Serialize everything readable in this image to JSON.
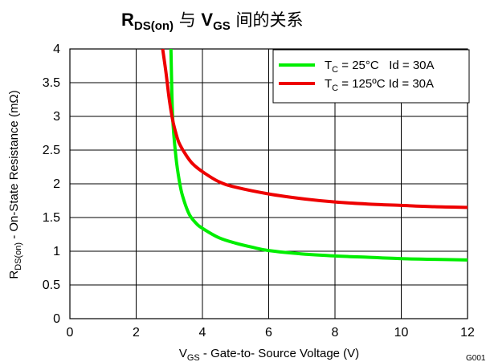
{
  "chart_data": {
    "type": "line",
    "title": {
      "p1": "R",
      "p1_sub": "DS(on)",
      "p2": " 与 ",
      "p3": "V",
      "p3_sub": "GS",
      "p4": " 间的关系"
    },
    "xlabel": {
      "main": "V",
      "sub": "GS",
      "rest": " - Gate-to- Source Voltage (V)"
    },
    "ylabel": {
      "main": "R",
      "sub": "DS(on)",
      "rest": " - On-State Resistance (mΩ)"
    },
    "xlim": [
      0,
      12
    ],
    "ylim": [
      0,
      4
    ],
    "xticks": [
      0,
      2,
      4,
      6,
      8,
      10,
      12
    ],
    "yticks": [
      0,
      0.5,
      1,
      1.5,
      2,
      2.5,
      3,
      3.5,
      4
    ],
    "xtick_labels": [
      "0",
      "2",
      "4",
      "6",
      "8",
      "10",
      "12"
    ],
    "ytick_labels": [
      "0",
      "0.5",
      "1",
      "1.5",
      "2",
      "2.5",
      "3",
      "3.5",
      "4"
    ],
    "grid": true,
    "legend_position": "top-right",
    "figure_code": "G001",
    "series": [
      {
        "name": {
          "t": "T",
          "sub": "C",
          "rest": " = 25°C   Id = 30A"
        },
        "color": "#00ee00",
        "x": [
          3.05,
          3.1,
          3.2,
          3.3,
          3.4,
          3.6,
          3.8,
          4.0,
          4.5,
          5.0,
          5.5,
          6.0,
          7.0,
          8.0,
          9.0,
          10.0,
          11.0,
          12.0
        ],
        "y": [
          4.0,
          3.0,
          2.4,
          2.05,
          1.82,
          1.55,
          1.42,
          1.34,
          1.2,
          1.12,
          1.06,
          1.01,
          0.96,
          0.93,
          0.91,
          0.89,
          0.88,
          0.87
        ]
      },
      {
        "name": {
          "t": "T",
          "sub": "C",
          "rest": " = 125ºC Id = 30A"
        },
        "color": "#ee0000",
        "x": [
          2.8,
          2.9,
          3.0,
          3.1,
          3.2,
          3.3,
          3.5,
          3.7,
          4.0,
          4.5,
          5.0,
          6.0,
          7.0,
          8.0,
          9.0,
          10.0,
          11.0,
          12.0
        ],
        "y": [
          4.0,
          3.65,
          3.25,
          2.95,
          2.75,
          2.6,
          2.43,
          2.3,
          2.18,
          2.03,
          1.95,
          1.85,
          1.78,
          1.73,
          1.7,
          1.68,
          1.66,
          1.65
        ]
      }
    ]
  }
}
